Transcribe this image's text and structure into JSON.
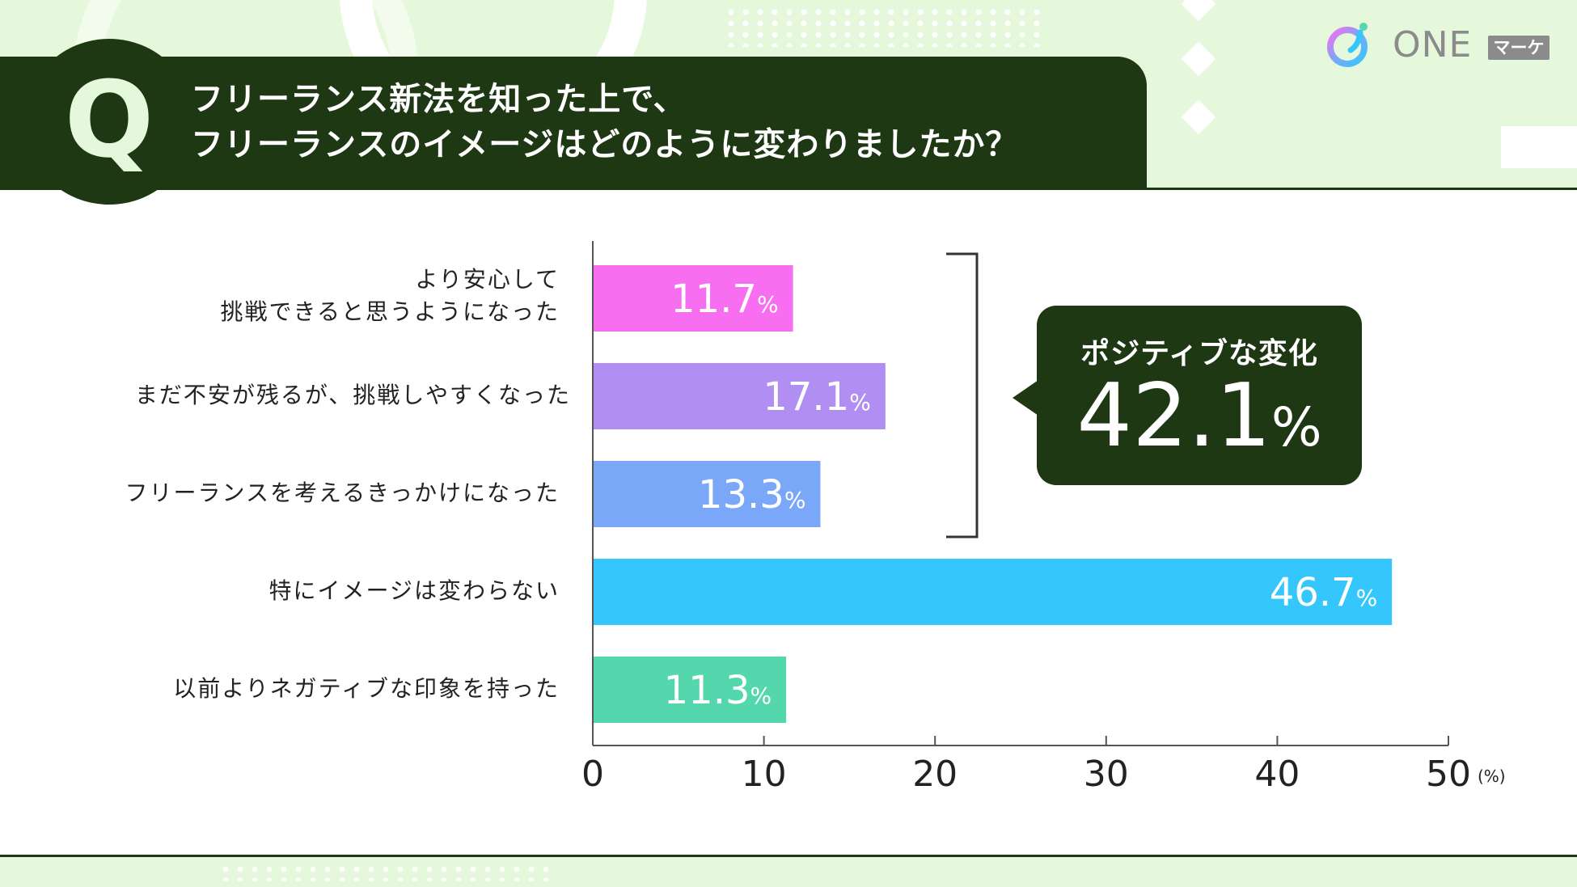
{
  "header": {
    "q_letter": "Q",
    "title_line1": "フリーランス新法を知った上で、",
    "title_line2": "フリーランスのイメージはどのように変わりましたか？"
  },
  "logo": {
    "text": "ONE",
    "badge": "マーケ"
  },
  "callout": {
    "title": "ポジティブな変化",
    "value": "42.1",
    "unit": "%"
  },
  "chart_data": {
    "type": "bar",
    "orientation": "horizontal",
    "categories": [
      "より安心して\n挑戦できると思うようになった",
      "まだ不安が残るが、挑戦しやすくなった",
      "フリーランスを考えるきっかけになった",
      "特にイメージは変わらない",
      "以前よりネガティブな印象を持った"
    ],
    "values": [
      11.7,
      17.1,
      13.3,
      46.7,
      11.3
    ],
    "value_labels": [
      "11.7",
      "17.1",
      "13.3",
      "46.7",
      "11.3"
    ],
    "value_unit": "%",
    "colors": [
      "#f76ef0",
      "#b18ff2",
      "#7aa7f8",
      "#35c7fb",
      "#55d7ad"
    ],
    "xlim": [
      0,
      50
    ],
    "xticks": [
      "0",
      "10",
      "20",
      "30",
      "40",
      "50"
    ],
    "x_unit": "(%)",
    "grid": false
  }
}
